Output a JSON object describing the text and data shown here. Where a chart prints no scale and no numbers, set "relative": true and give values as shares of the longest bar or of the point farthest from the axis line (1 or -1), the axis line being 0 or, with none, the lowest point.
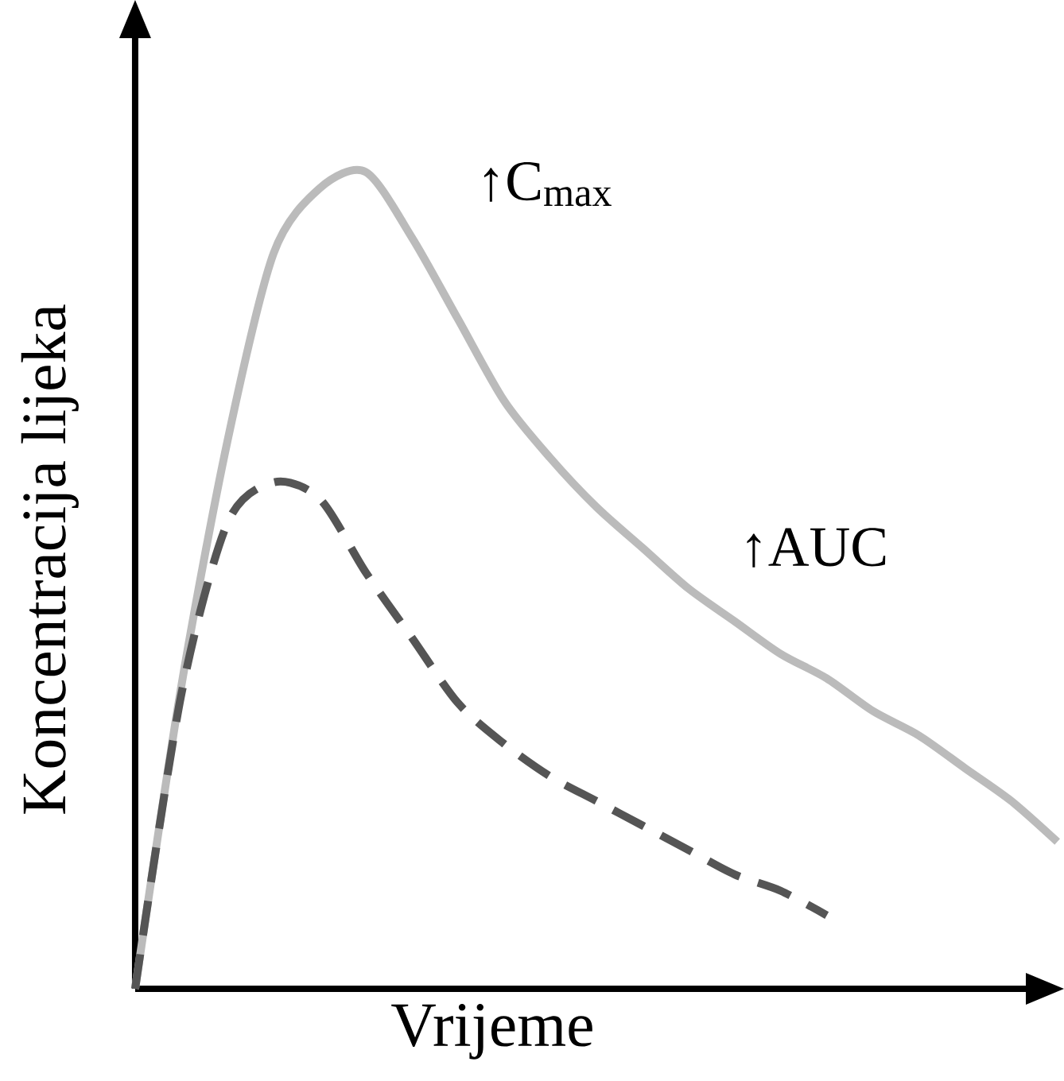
{
  "chart_data": {
    "type": "line",
    "relative": true,
    "xlabel": "Vrijeme",
    "ylabel": "Koncentracija lijeka",
    "categories": [
      null,
      null,
      null,
      null,
      null,
      null,
      null,
      null,
      null,
      null,
      null,
      null,
      null,
      null,
      null,
      null,
      null,
      null,
      null,
      null,
      null
    ],
    "series": [
      {
        "color": "#bbbbbb",
        "line_style": "solid",
        "values": [
          0,
          0.37,
          0.67,
          0.9,
          0.98,
          1,
          0.92,
          0.82,
          0.72,
          0.65,
          0.59,
          0.54,
          0.49,
          0.45,
          0.41,
          0.38,
          0.34,
          0.31,
          0.27,
          0.23,
          0.18
        ]
      },
      {
        "color": "#555555",
        "line_style": "dashed",
        "values": [
          0,
          0.36,
          0.57,
          0.62,
          0.6,
          0.51,
          0.43,
          0.35,
          0.3,
          0.26,
          0.23,
          0.2,
          0.17,
          0.14,
          0.12,
          0.09,
          null,
          null,
          null,
          null,
          null
        ]
      }
    ],
    "annotations": [
      "↑C$_{max}$",
      "↑AUC"
    ]
  }
}
